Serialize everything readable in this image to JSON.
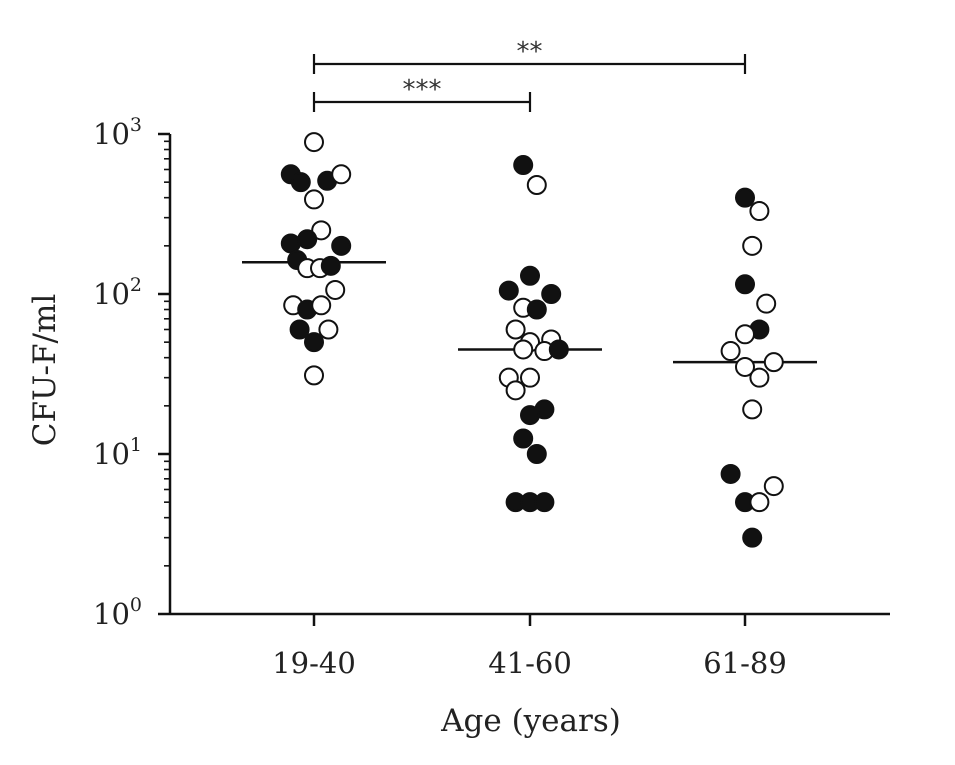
{
  "chart_data": {
    "type": "scatter",
    "subtype": "dot-strip-plot",
    "xlabel": "Age (years)",
    "ylabel": "CFU-F/ml",
    "yscale": "log",
    "ylim": [
      1,
      1000
    ],
    "y_ticks": [
      {
        "base": "10",
        "exp": "0",
        "value": 1
      },
      {
        "base": "10",
        "exp": "1",
        "value": 10
      },
      {
        "base": "10",
        "exp": "2",
        "value": 100
      },
      {
        "base": "10",
        "exp": "3",
        "value": 1000
      }
    ],
    "categories": [
      "19-40",
      "41-60",
      "61-89"
    ],
    "groups": [
      {
        "category": "19-40",
        "median": 158,
        "points": [
          {
            "offset": 0.0,
            "y": 890,
            "filled": false
          },
          {
            "offset": -0.58,
            "y": 560,
            "filled": true
          },
          {
            "offset": -0.33,
            "y": 500,
            "filled": true
          },
          {
            "offset": 0.33,
            "y": 510,
            "filled": true
          },
          {
            "offset": 0.68,
            "y": 560,
            "filled": false
          },
          {
            "offset": 0.0,
            "y": 390,
            "filled": false
          },
          {
            "offset": 0.18,
            "y": 250,
            "filled": false
          },
          {
            "offset": -0.58,
            "y": 207,
            "filled": true
          },
          {
            "offset": -0.17,
            "y": 220,
            "filled": true
          },
          {
            "offset": 0.68,
            "y": 200,
            "filled": true
          },
          {
            "offset": -0.42,
            "y": 163,
            "filled": true
          },
          {
            "offset": -0.17,
            "y": 145,
            "filled": false
          },
          {
            "offset": 0.15,
            "y": 145,
            "filled": false
          },
          {
            "offset": 0.42,
            "y": 150,
            "filled": true
          },
          {
            "offset": 0.53,
            "y": 106,
            "filled": false
          },
          {
            "offset": -0.52,
            "y": 85,
            "filled": false
          },
          {
            "offset": -0.17,
            "y": 80,
            "filled": true
          },
          {
            "offset": 0.18,
            "y": 85,
            "filled": false
          },
          {
            "offset": -0.36,
            "y": 60,
            "filled": true
          },
          {
            "offset": 0.36,
            "y": 60,
            "filled": false
          },
          {
            "offset": 0.0,
            "y": 50,
            "filled": true
          },
          {
            "offset": 0.0,
            "y": 31,
            "filled": false
          }
        ]
      },
      {
        "category": "41-60",
        "median": 45,
        "points": [
          {
            "offset": -0.17,
            "y": 640,
            "filled": true
          },
          {
            "offset": 0.17,
            "y": 480,
            "filled": false
          },
          {
            "offset": 0.0,
            "y": 130,
            "filled": true
          },
          {
            "offset": -0.53,
            "y": 105,
            "filled": true
          },
          {
            "offset": 0.53,
            "y": 100,
            "filled": true
          },
          {
            "offset": -0.17,
            "y": 82,
            "filled": false
          },
          {
            "offset": 0.17,
            "y": 80,
            "filled": true
          },
          {
            "offset": -0.36,
            "y": 60,
            "filled": false
          },
          {
            "offset": 0.0,
            "y": 50,
            "filled": false
          },
          {
            "offset": 0.53,
            "y": 52,
            "filled": false
          },
          {
            "offset": -0.17,
            "y": 45,
            "filled": false
          },
          {
            "offset": 0.36,
            "y": 44,
            "filled": false
          },
          {
            "offset": 0.72,
            "y": 45,
            "filled": true
          },
          {
            "offset": -0.53,
            "y": 30,
            "filled": false
          },
          {
            "offset": 0.0,
            "y": 30,
            "filled": false
          },
          {
            "offset": -0.36,
            "y": 25,
            "filled": false
          },
          {
            "offset": 0.36,
            "y": 19,
            "filled": true
          },
          {
            "offset": 0.0,
            "y": 17.5,
            "filled": true
          },
          {
            "offset": -0.17,
            "y": 12.5,
            "filled": true
          },
          {
            "offset": 0.17,
            "y": 10,
            "filled": true
          },
          {
            "offset": -0.36,
            "y": 5,
            "filled": true
          },
          {
            "offset": 0.0,
            "y": 5,
            "filled": true
          },
          {
            "offset": 0.36,
            "y": 5,
            "filled": true
          }
        ]
      },
      {
        "category": "61-89",
        "median": 37.5,
        "points": [
          {
            "offset": 0.0,
            "y": 400,
            "filled": true
          },
          {
            "offset": 0.36,
            "y": 330,
            "filled": false
          },
          {
            "offset": 0.18,
            "y": 200,
            "filled": false
          },
          {
            "offset": 0.0,
            "y": 115,
            "filled": true
          },
          {
            "offset": 0.53,
            "y": 87,
            "filled": false
          },
          {
            "offset": 0.36,
            "y": 60,
            "filled": true
          },
          {
            "offset": 0.0,
            "y": 56,
            "filled": false
          },
          {
            "offset": -0.36,
            "y": 44,
            "filled": false
          },
          {
            "offset": 0.0,
            "y": 35,
            "filled": false
          },
          {
            "offset": 0.36,
            "y": 30,
            "filled": false
          },
          {
            "offset": 0.72,
            "y": 37.5,
            "filled": false
          },
          {
            "offset": 0.18,
            "y": 19,
            "filled": false
          },
          {
            "offset": -0.36,
            "y": 7.5,
            "filled": true
          },
          {
            "offset": 0.72,
            "y": 6.3,
            "filled": false
          },
          {
            "offset": 0.0,
            "y": 5,
            "filled": true
          },
          {
            "offset": 0.36,
            "y": 5,
            "filled": false
          },
          {
            "offset": 0.18,
            "y": 3,
            "filled": true
          }
        ]
      }
    ],
    "significance": [
      {
        "from": "19-40",
        "to": "41-60",
        "label": "***",
        "level": 1
      },
      {
        "from": "19-40",
        "to": "61-89",
        "label": "**",
        "level": 2
      }
    ],
    "colors": {
      "ink": "#111111",
      "open_fill": "#ffffff"
    }
  }
}
